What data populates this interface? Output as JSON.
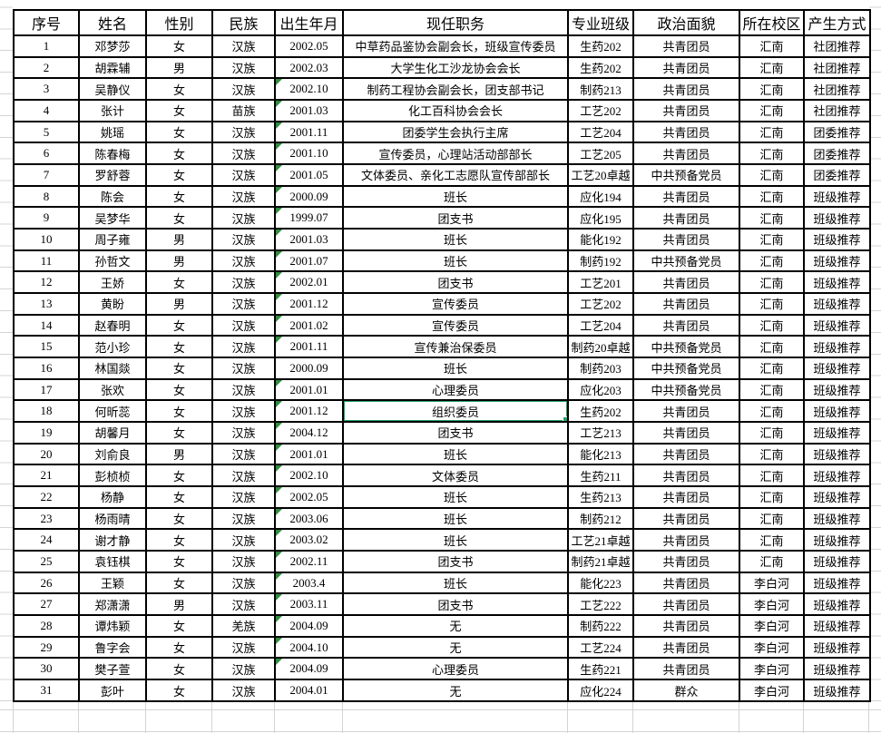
{
  "app": {
    "kind": "spreadsheet-grid",
    "selection": {
      "row_number": "18",
      "column_label": "现任职务",
      "cell_value": "组织委员"
    }
  },
  "colors": {
    "cell_border": "#000000",
    "grid_line": "#d4d4d4",
    "selection_green": "#21a366",
    "flag_triangle_green": "#2f8f3f",
    "background": "#ffffff",
    "text": "#000000"
  },
  "table": {
    "columns": [
      {
        "key": "no",
        "label": "序号"
      },
      {
        "key": "name",
        "label": "姓名"
      },
      {
        "key": "gender",
        "label": "性别"
      },
      {
        "key": "ethnic",
        "label": "民族"
      },
      {
        "key": "birth",
        "label": "出生年月"
      },
      {
        "key": "position",
        "label": "现任职务"
      },
      {
        "key": "classname",
        "label": "专业班级"
      },
      {
        "key": "political",
        "label": "政治面貌"
      },
      {
        "key": "campus",
        "label": "所在校区"
      },
      {
        "key": "method",
        "label": "产生方式"
      }
    ],
    "rows": [
      {
        "no": "1",
        "name": "邓梦莎",
        "gender": "女",
        "ethnic": "汉族",
        "birth": "2002.05",
        "position": "中草药品鉴协会副会长，班级宣传委员",
        "classname": "生药202",
        "political": "共青团员",
        "campus": "汇南",
        "method": "社团推荐",
        "birth_flag": false,
        "selected": false
      },
      {
        "no": "2",
        "name": "胡霖辅",
        "gender": "男",
        "ethnic": "汉族",
        "birth": "2002.03",
        "position": "大学生化工沙龙协会会长",
        "classname": "生药202",
        "political": "共青团员",
        "campus": "汇南",
        "method": "社团推荐",
        "birth_flag": false,
        "selected": false
      },
      {
        "no": "3",
        "name": "吴静仪",
        "gender": "女",
        "ethnic": "汉族",
        "birth": "2002.10",
        "position": "制药工程协会副会长，团支部书记",
        "classname": "制药213",
        "political": "共青团员",
        "campus": "汇南",
        "method": "社团推荐",
        "birth_flag": true,
        "selected": false
      },
      {
        "no": "4",
        "name": "张计",
        "gender": "女",
        "ethnic": "苗族",
        "birth": "2001.03",
        "position": "化工百科协会会长",
        "classname": "工艺202",
        "political": "共青团员",
        "campus": "汇南",
        "method": "社团推荐",
        "birth_flag": true,
        "selected": false
      },
      {
        "no": "5",
        "name": "姚瑶",
        "gender": "女",
        "ethnic": "汉族",
        "birth": "2001.11",
        "position": "团委学生会执行主席",
        "classname": "工艺204",
        "political": "共青团员",
        "campus": "汇南",
        "method": "团委推荐",
        "birth_flag": true,
        "selected": false
      },
      {
        "no": "6",
        "name": "陈春梅",
        "gender": "女",
        "ethnic": "汉族",
        "birth": "2001.10",
        "position": "宣传委员，心理站活动部部长",
        "classname": "工艺205",
        "political": "共青团员",
        "campus": "汇南",
        "method": "团委推荐",
        "birth_flag": true,
        "selected": false
      },
      {
        "no": "7",
        "name": "罗舒蓉",
        "gender": "女",
        "ethnic": "汉族",
        "birth": "2001.05",
        "position": "文体委员、亲化工志愿队宣传部部长",
        "classname": "工艺20卓越",
        "political": "中共预备党员",
        "campus": "汇南",
        "method": "团委推荐",
        "birth_flag": true,
        "selected": false
      },
      {
        "no": "8",
        "name": "陈会",
        "gender": "女",
        "ethnic": "汉族",
        "birth": "2000.09",
        "position": "班长",
        "classname": "应化194",
        "political": "共青团员",
        "campus": "汇南",
        "method": "班级推荐",
        "birth_flag": true,
        "selected": false
      },
      {
        "no": "9",
        "name": "吴梦华",
        "gender": "女",
        "ethnic": "汉族",
        "birth": "1999.07",
        "position": "团支书",
        "classname": "应化195",
        "political": "共青团员",
        "campus": "汇南",
        "method": "班级推荐",
        "birth_flag": true,
        "selected": false
      },
      {
        "no": "10",
        "name": "周子雍",
        "gender": "男",
        "ethnic": "汉族",
        "birth": "2001.03",
        "position": "班长",
        "classname": "能化192",
        "political": "共青团员",
        "campus": "汇南",
        "method": "班级推荐",
        "birth_flag": true,
        "selected": false
      },
      {
        "no": "11",
        "name": "孙哲文",
        "gender": "男",
        "ethnic": "汉族",
        "birth": "2001.07",
        "position": "班长",
        "classname": "制药192",
        "political": "中共预备党员",
        "campus": "汇南",
        "method": "班级推荐",
        "birth_flag": true,
        "selected": false
      },
      {
        "no": "12",
        "name": "王娇",
        "gender": "女",
        "ethnic": "汉族",
        "birth": "2002.01",
        "position": "团支书",
        "classname": "工艺201",
        "political": "共青团员",
        "campus": "汇南",
        "method": "班级推荐",
        "birth_flag": true,
        "selected": false
      },
      {
        "no": "13",
        "name": "黄盼",
        "gender": "男",
        "ethnic": "汉族",
        "birth": "2001.12",
        "position": "宣传委员",
        "classname": "工艺202",
        "political": "共青团员",
        "campus": "汇南",
        "method": "班级推荐",
        "birth_flag": true,
        "selected": false
      },
      {
        "no": "14",
        "name": "赵春明",
        "gender": "女",
        "ethnic": "汉族",
        "birth": "2001.02",
        "position": "宣传委员",
        "classname": "工艺204",
        "political": "共青团员",
        "campus": "汇南",
        "method": "班级推荐",
        "birth_flag": true,
        "selected": false
      },
      {
        "no": "15",
        "name": "范小珍",
        "gender": "女",
        "ethnic": "汉族",
        "birth": "2001.11",
        "position": "宣传兼治保委员",
        "classname": "制药20卓越",
        "political": "中共预备党员",
        "campus": "汇南",
        "method": "班级推荐",
        "birth_flag": true,
        "selected": false
      },
      {
        "no": "16",
        "name": "林国燚",
        "gender": "女",
        "ethnic": "汉族",
        "birth": "2000.09",
        "position": "班长",
        "classname": "制药203",
        "political": "中共预备党员",
        "campus": "汇南",
        "method": "班级推荐",
        "birth_flag": false,
        "selected": false
      },
      {
        "no": "17",
        "name": "张欢",
        "gender": "女",
        "ethnic": "汉族",
        "birth": "2001.01",
        "position": "心理委员",
        "classname": "应化203",
        "political": "中共预备党员",
        "campus": "汇南",
        "method": "班级推荐",
        "birth_flag": true,
        "selected": false
      },
      {
        "no": "18",
        "name": "何昕蕊",
        "gender": "女",
        "ethnic": "汉族",
        "birth": "2001.12",
        "position": "组织委员",
        "classname": "生药202",
        "political": "共青团员",
        "campus": "汇南",
        "method": "班级推荐",
        "birth_flag": true,
        "selected": true
      },
      {
        "no": "19",
        "name": "胡馨月",
        "gender": "女",
        "ethnic": "汉族",
        "birth": "2004.12",
        "position": "团支书",
        "classname": "工艺213",
        "political": "共青团员",
        "campus": "汇南",
        "method": "班级推荐",
        "birth_flag": true,
        "selected": false
      },
      {
        "no": "20",
        "name": "刘俞良",
        "gender": "男",
        "ethnic": "汉族",
        "birth": "2001.01",
        "position": "班长",
        "classname": "能化213",
        "political": "共青团员",
        "campus": "汇南",
        "method": "班级推荐",
        "birth_flag": true,
        "selected": false
      },
      {
        "no": "21",
        "name": "彭桢桢",
        "gender": "女",
        "ethnic": "汉族",
        "birth": "2002.10",
        "position": "文体委员",
        "classname": "生药211",
        "political": "共青团员",
        "campus": "汇南",
        "method": "班级推荐",
        "birth_flag": true,
        "selected": false
      },
      {
        "no": "22",
        "name": "杨静",
        "gender": "女",
        "ethnic": "汉族",
        "birth": "2002.05",
        "position": "班长",
        "classname": "生药213",
        "political": "共青团员",
        "campus": "汇南",
        "method": "班级推荐",
        "birth_flag": true,
        "selected": false
      },
      {
        "no": "23",
        "name": "杨雨晴",
        "gender": "女",
        "ethnic": "汉族",
        "birth": "2003.06",
        "position": "班长",
        "classname": "制药212",
        "political": "共青团员",
        "campus": "汇南",
        "method": "班级推荐",
        "birth_flag": true,
        "selected": false
      },
      {
        "no": "24",
        "name": "谢才静",
        "gender": "女",
        "ethnic": "汉族",
        "birth": "2003.02",
        "position": "班长",
        "classname": "工艺21卓越",
        "political": "共青团员",
        "campus": "汇南",
        "method": "班级推荐",
        "birth_flag": true,
        "selected": false
      },
      {
        "no": "25",
        "name": "袁钰棋",
        "gender": "女",
        "ethnic": "汉族",
        "birth": "2002.11",
        "position": "团支书",
        "classname": "制药21卓越",
        "political": "共青团员",
        "campus": "汇南",
        "method": "班级推荐",
        "birth_flag": true,
        "selected": false
      },
      {
        "no": "26",
        "name": "王颖",
        "gender": "女",
        "ethnic": "汉族",
        "birth": "2003.4",
        "position": "班长",
        "classname": "能化223",
        "political": "共青团员",
        "campus": "李白河",
        "method": "班级推荐",
        "birth_flag": true,
        "selected": false
      },
      {
        "no": "27",
        "name": "郑潇潇",
        "gender": "男",
        "ethnic": "汉族",
        "birth": "2003.11",
        "position": "团支书",
        "classname": "工艺222",
        "political": "共青团员",
        "campus": "李白河",
        "method": "班级推荐",
        "birth_flag": true,
        "selected": false
      },
      {
        "no": "28",
        "name": "谭炜颖",
        "gender": "女",
        "ethnic": "羌族",
        "birth": "2004.09",
        "position": "无",
        "classname": "制药222",
        "political": "共青团员",
        "campus": "李白河",
        "method": "班级推荐",
        "birth_flag": true,
        "selected": false
      },
      {
        "no": "29",
        "name": "鲁字会",
        "gender": "女",
        "ethnic": "汉族",
        "birth": "2004.10",
        "position": "无",
        "classname": "工艺224",
        "political": "共青团员",
        "campus": "李白河",
        "method": "班级推荐",
        "birth_flag": true,
        "selected": false
      },
      {
        "no": "30",
        "name": "樊子萱",
        "gender": "女",
        "ethnic": "汉族",
        "birth": "2004.09",
        "position": "心理委员",
        "classname": "生药221",
        "political": "共青团员",
        "campus": "李白河",
        "method": "班级推荐",
        "birth_flag": true,
        "selected": false
      },
      {
        "no": "31",
        "name": "彭叶",
        "gender": "女",
        "ethnic": "汉族",
        "birth": "2004.01",
        "position": "无",
        "classname": "应化224",
        "political": "群众",
        "campus": "李白河",
        "method": "班级推荐",
        "birth_flag": false,
        "selected": false
      }
    ]
  }
}
